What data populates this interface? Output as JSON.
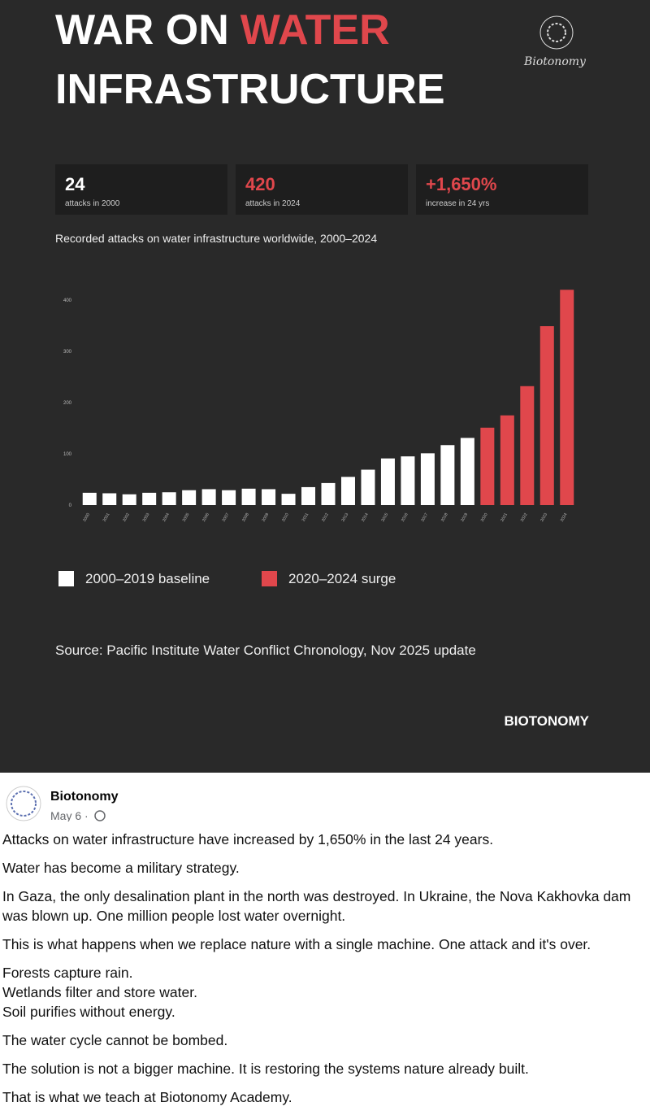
{
  "header": {
    "title_parts": [
      "WAR ON",
      "WATER",
      "INFRASTRUCTURE"
    ],
    "logo_text": "Biotonomy"
  },
  "stats": [
    {
      "value": "24",
      "label": "attacks in 2000"
    },
    {
      "value": "420",
      "label": "attacks in 2024"
    },
    {
      "value": "+1,650%",
      "label": "increase in 24 yrs"
    }
  ],
  "chart_data": {
    "type": "bar",
    "title": "Recorded attacks on water infrastructure worldwide, 2000–2024",
    "categories": [
      "2000",
      "2001",
      "2002",
      "2003",
      "2004",
      "2005",
      "2006",
      "2007",
      "2008",
      "2009",
      "2010",
      "2011",
      "2012",
      "2013",
      "2014",
      "2015",
      "2016",
      "2017",
      "2018",
      "2019",
      "2020",
      "2021",
      "2022",
      "2023",
      "2024"
    ],
    "series": [
      {
        "name": "2000–2019 baseline",
        "color": "#ffffff",
        "values": [
          24,
          23,
          21,
          24,
          25,
          29,
          31,
          29,
          32,
          31,
          22,
          35,
          43,
          55,
          69,
          91,
          95,
          101,
          117,
          131,
          null,
          null,
          null,
          null,
          null
        ]
      },
      {
        "name": "2020–2024 surge",
        "color": "#e0474c",
        "values": [
          null,
          null,
          null,
          null,
          null,
          null,
          null,
          null,
          null,
          null,
          null,
          null,
          null,
          null,
          null,
          null,
          null,
          null,
          null,
          null,
          151,
          175,
          232,
          349,
          420
        ]
      }
    ],
    "ylim": [
      0,
      430
    ],
    "yticks": [
      0,
      100,
      200,
      300,
      400
    ],
    "grid": false,
    "legend": "bottom-left"
  },
  "source": "Source: Pacific Institute Water Conflict Chronology, Nov 2025 update",
  "brand": "BIOTONOMY",
  "post": {
    "author": "Biotonomy",
    "date": "May 6 ·",
    "paragraphs": [
      [
        "Attacks on water infrastructure have increased by 1,650% in the last 24 years."
      ],
      [
        "Water has become a military strategy."
      ],
      [
        "In Gaza, the only desalination plant in the north was destroyed. In Ukraine, the Nova Kakhovka dam was blown up. One million people lost water overnight."
      ],
      [
        "This is what happens when we replace nature with a single machine. One attack and it's over."
      ],
      [
        "Forests capture rain.",
        "Wetlands filter and store water.",
        "Soil purifies without energy."
      ],
      [
        "The water cycle cannot be bombed."
      ],
      [
        "The solution is not a bigger machine. It is restoring the systems nature already built."
      ],
      [
        "That is what we teach at Biotonomy Academy."
      ]
    ]
  }
}
